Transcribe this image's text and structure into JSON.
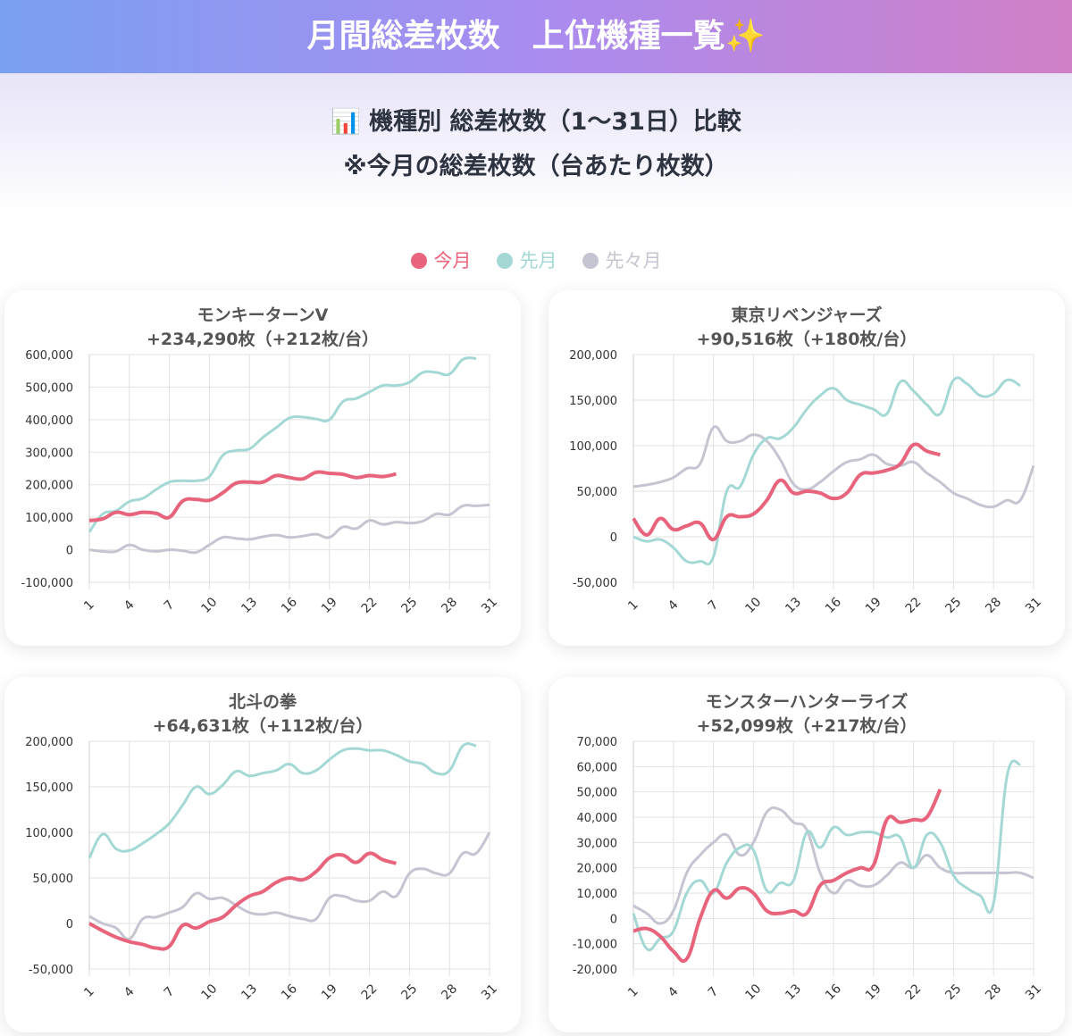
{
  "header": {
    "title": "月間総差枚数　上位機種一覧✨"
  },
  "section": {
    "title": "📊 機種別 総差枚数（1〜31日）比較",
    "note": "※今月の総差枚数（台あたり枚数）"
  },
  "legend": [
    {
      "name": "今月",
      "color": "#e8637c"
    },
    {
      "name": "先月",
      "color": "#a3d8d5"
    },
    {
      "name": "先々月",
      "color": "#c4c5d0"
    }
  ],
  "chart_data": [
    {
      "type": "line",
      "title": "モンキーターンV",
      "subtitle": "+234,290枚（+212枚/台）",
      "x": [
        1,
        2,
        3,
        4,
        5,
        6,
        7,
        8,
        9,
        10,
        11,
        12,
        13,
        14,
        15,
        16,
        17,
        18,
        19,
        20,
        21,
        22,
        23,
        24,
        25,
        26,
        27,
        28,
        29,
        30,
        31
      ],
      "xlim": [
        1,
        31
      ],
      "xticks": [
        1,
        4,
        7,
        10,
        13,
        16,
        19,
        22,
        25,
        28,
        31
      ],
      "ylim": [
        -100000,
        600000
      ],
      "yticks": [
        {
          "value": -100000,
          "label": "-100,000"
        },
        0,
        {
          "value": 100000,
          "label": "100,000"
        },
        {
          "value": 200000,
          "label": "200,000"
        },
        {
          "value": 300000,
          "label": "300,000"
        },
        {
          "value": 400000,
          "label": "400,000"
        },
        {
          "value": 500000,
          "label": "500,000"
        },
        {
          "value": 600000,
          "label": "600,000"
        }
      ],
      "grid": true,
      "series": [
        {
          "values": [
            90000,
            95000,
            115000,
            108000,
            115000,
            112000,
            100000,
            150000,
            155000,
            152000,
            175000,
            205000,
            208000,
            208000,
            228000,
            222000,
            218000,
            238000,
            235000,
            232000,
            222000,
            228000,
            225000,
            233000,
            null,
            null,
            null,
            null,
            null,
            null,
            null
          ]
        },
        {
          "values": [
            55000,
            110000,
            120000,
            148000,
            158000,
            185000,
            208000,
            212000,
            212000,
            225000,
            290000,
            305000,
            310000,
            345000,
            375000,
            405000,
            408000,
            402000,
            400000,
            455000,
            465000,
            485000,
            505000,
            505000,
            515000,
            545000,
            545000,
            540000,
            585000,
            588000,
            null
          ]
        },
        {
          "values": [
            0,
            -5000,
            -5000,
            15000,
            0,
            -5000,
            0,
            -3000,
            -8000,
            15000,
            38000,
            35000,
            32000,
            40000,
            45000,
            38000,
            42000,
            48000,
            38000,
            70000,
            65000,
            90000,
            78000,
            85000,
            82000,
            88000,
            110000,
            108000,
            135000,
            135000,
            138000
          ]
        }
      ]
    },
    {
      "type": "line",
      "title": "東京リベンジャーズ",
      "subtitle": "+90,516枚（+180枚/台）",
      "x": [
        1,
        2,
        3,
        4,
        5,
        6,
        7,
        8,
        9,
        10,
        11,
        12,
        13,
        14,
        15,
        16,
        17,
        18,
        19,
        20,
        21,
        22,
        23,
        24,
        25,
        26,
        27,
        28,
        29,
        30,
        31
      ],
      "xlim": [
        1,
        31
      ],
      "xticks": [
        1,
        4,
        7,
        10,
        13,
        16,
        19,
        22,
        25,
        28,
        31
      ],
      "ylim": [
        -50000,
        200000
      ],
      "yticks": [
        {
          "value": -50000,
          "label": "-50,000"
        },
        0,
        {
          "value": 50000,
          "label": "50,000"
        },
        {
          "value": 100000,
          "label": "100,000"
        },
        {
          "value": 150000,
          "label": "150,000"
        },
        {
          "value": 200000,
          "label": "200,000"
        }
      ],
      "grid": true,
      "series": [
        {
          "values": [
            20000,
            2000,
            20000,
            8000,
            12000,
            15000,
            -3000,
            22000,
            22000,
            25000,
            40000,
            62000,
            48000,
            50000,
            48000,
            42000,
            48000,
            68000,
            70000,
            73000,
            80000,
            101000,
            94000,
            90000,
            null,
            null,
            null,
            null,
            null,
            null,
            null
          ]
        },
        {
          "values": [
            0,
            -5000,
            -3000,
            -12000,
            -27000,
            -27000,
            -22000,
            50000,
            55000,
            90000,
            108000,
            108000,
            120000,
            140000,
            155000,
            163000,
            150000,
            145000,
            140000,
            135000,
            170000,
            160000,
            145000,
            135000,
            172000,
            168000,
            155000,
            157000,
            172000,
            166000,
            null
          ]
        },
        {
          "values": [
            55000,
            57000,
            60000,
            65000,
            75000,
            80000,
            120000,
            105000,
            105000,
            112000,
            105000,
            85000,
            58000,
            52000,
            60000,
            72000,
            82000,
            85000,
            90000,
            80000,
            78000,
            82000,
            70000,
            60000,
            48000,
            42000,
            35000,
            33000,
            40000,
            40000,
            78000
          ]
        }
      ]
    },
    {
      "type": "line",
      "title": "北斗の拳",
      "subtitle": "+64,631枚（+112枚/台）",
      "x": [
        1,
        2,
        3,
        4,
        5,
        6,
        7,
        8,
        9,
        10,
        11,
        12,
        13,
        14,
        15,
        16,
        17,
        18,
        19,
        20,
        21,
        22,
        23,
        24,
        25,
        26,
        27,
        28,
        29,
        30,
        31
      ],
      "xlim": [
        1,
        31
      ],
      "xticks": [
        1,
        4,
        7,
        10,
        13,
        16,
        19,
        22,
        25,
        28,
        31
      ],
      "ylim": [
        -50000,
        200000
      ],
      "yticks": [
        {
          "value": -50000,
          "label": "-50,000"
        },
        0,
        {
          "value": 50000,
          "label": "50,000"
        },
        {
          "value": 100000,
          "label": "100,000"
        },
        {
          "value": 150000,
          "label": "150,000"
        },
        {
          "value": 200000,
          "label": "200,000"
        }
      ],
      "grid": true,
      "series": [
        {
          "values": [
            0,
            -8000,
            -15000,
            -20000,
            -23000,
            -27000,
            -25000,
            -2000,
            -5000,
            2000,
            7000,
            20000,
            30000,
            35000,
            45000,
            50000,
            48000,
            57000,
            72000,
            75000,
            67000,
            77000,
            70000,
            66000,
            null,
            null,
            null,
            null,
            null,
            null,
            null
          ]
        },
        {
          "values": [
            72000,
            98000,
            82000,
            80000,
            88000,
            98000,
            110000,
            130000,
            150000,
            142000,
            152000,
            167000,
            162000,
            165000,
            168000,
            175000,
            165000,
            168000,
            180000,
            190000,
            192000,
            190000,
            190000,
            185000,
            178000,
            175000,
            165000,
            168000,
            195000,
            195000,
            null
          ]
        },
        {
          "values": [
            8000,
            0,
            -5000,
            -17000,
            5000,
            7000,
            12000,
            18000,
            33000,
            27000,
            28000,
            20000,
            12000,
            10000,
            12000,
            8000,
            5000,
            5000,
            28000,
            30000,
            25000,
            25000,
            35000,
            30000,
            55000,
            60000,
            55000,
            55000,
            77000,
            77000,
            100000
          ]
        }
      ]
    },
    {
      "type": "line",
      "title": "モンスターハンターライズ",
      "subtitle": "+52,099枚（+217枚/台）",
      "x": [
        1,
        2,
        3,
        4,
        5,
        6,
        7,
        8,
        9,
        10,
        11,
        12,
        13,
        14,
        15,
        16,
        17,
        18,
        19,
        20,
        21,
        22,
        23,
        24,
        25,
        26,
        27,
        28,
        29,
        30,
        31
      ],
      "xlim": [
        1,
        31
      ],
      "xticks": [
        1,
        4,
        7,
        10,
        13,
        16,
        19,
        22,
        25,
        28,
        31
      ],
      "ylim": [
        -20000,
        70000
      ],
      "yticks": [
        {
          "value": -20000,
          "label": "-20,000"
        },
        {
          "value": -10000,
          "label": "-10,000"
        },
        0,
        {
          "value": 10000,
          "label": "10,000"
        },
        {
          "value": 20000,
          "label": "20,000"
        },
        {
          "value": 30000,
          "label": "30,000"
        },
        {
          "value": 40000,
          "label": "40,000"
        },
        {
          "value": 50000,
          "label": "50,000"
        },
        {
          "value": 60000,
          "label": "60,000"
        },
        {
          "value": 70000,
          "label": "70,000"
        }
      ],
      "grid": true,
      "series": [
        {
          "values": [
            -5000,
            -4000,
            -7000,
            -13000,
            -16000,
            0,
            11000,
            8000,
            12000,
            10000,
            3000,
            2000,
            3000,
            2000,
            13000,
            15000,
            18000,
            20000,
            21000,
            39000,
            38000,
            39000,
            40000,
            51000,
            null,
            null,
            null,
            null,
            null,
            null,
            null
          ]
        },
        {
          "values": [
            2000,
            -12000,
            -8000,
            -5000,
            10000,
            15000,
            10000,
            22000,
            28000,
            27000,
            11000,
            14000,
            15000,
            34000,
            28000,
            36000,
            33000,
            34000,
            34000,
            32000,
            32000,
            20000,
            33000,
            30000,
            17000,
            12000,
            9000,
            6000,
            56000,
            61000,
            null
          ]
        },
        {
          "values": [
            5000,
            2000,
            -2000,
            3000,
            18000,
            25000,
            30000,
            33000,
            25000,
            30000,
            42000,
            43000,
            38000,
            35000,
            18000,
            10000,
            15000,
            13000,
            13000,
            17000,
            22000,
            20000,
            25000,
            20000,
            18000,
            18000,
            18000,
            18000,
            18000,
            18000,
            16000
          ]
        }
      ]
    }
  ]
}
